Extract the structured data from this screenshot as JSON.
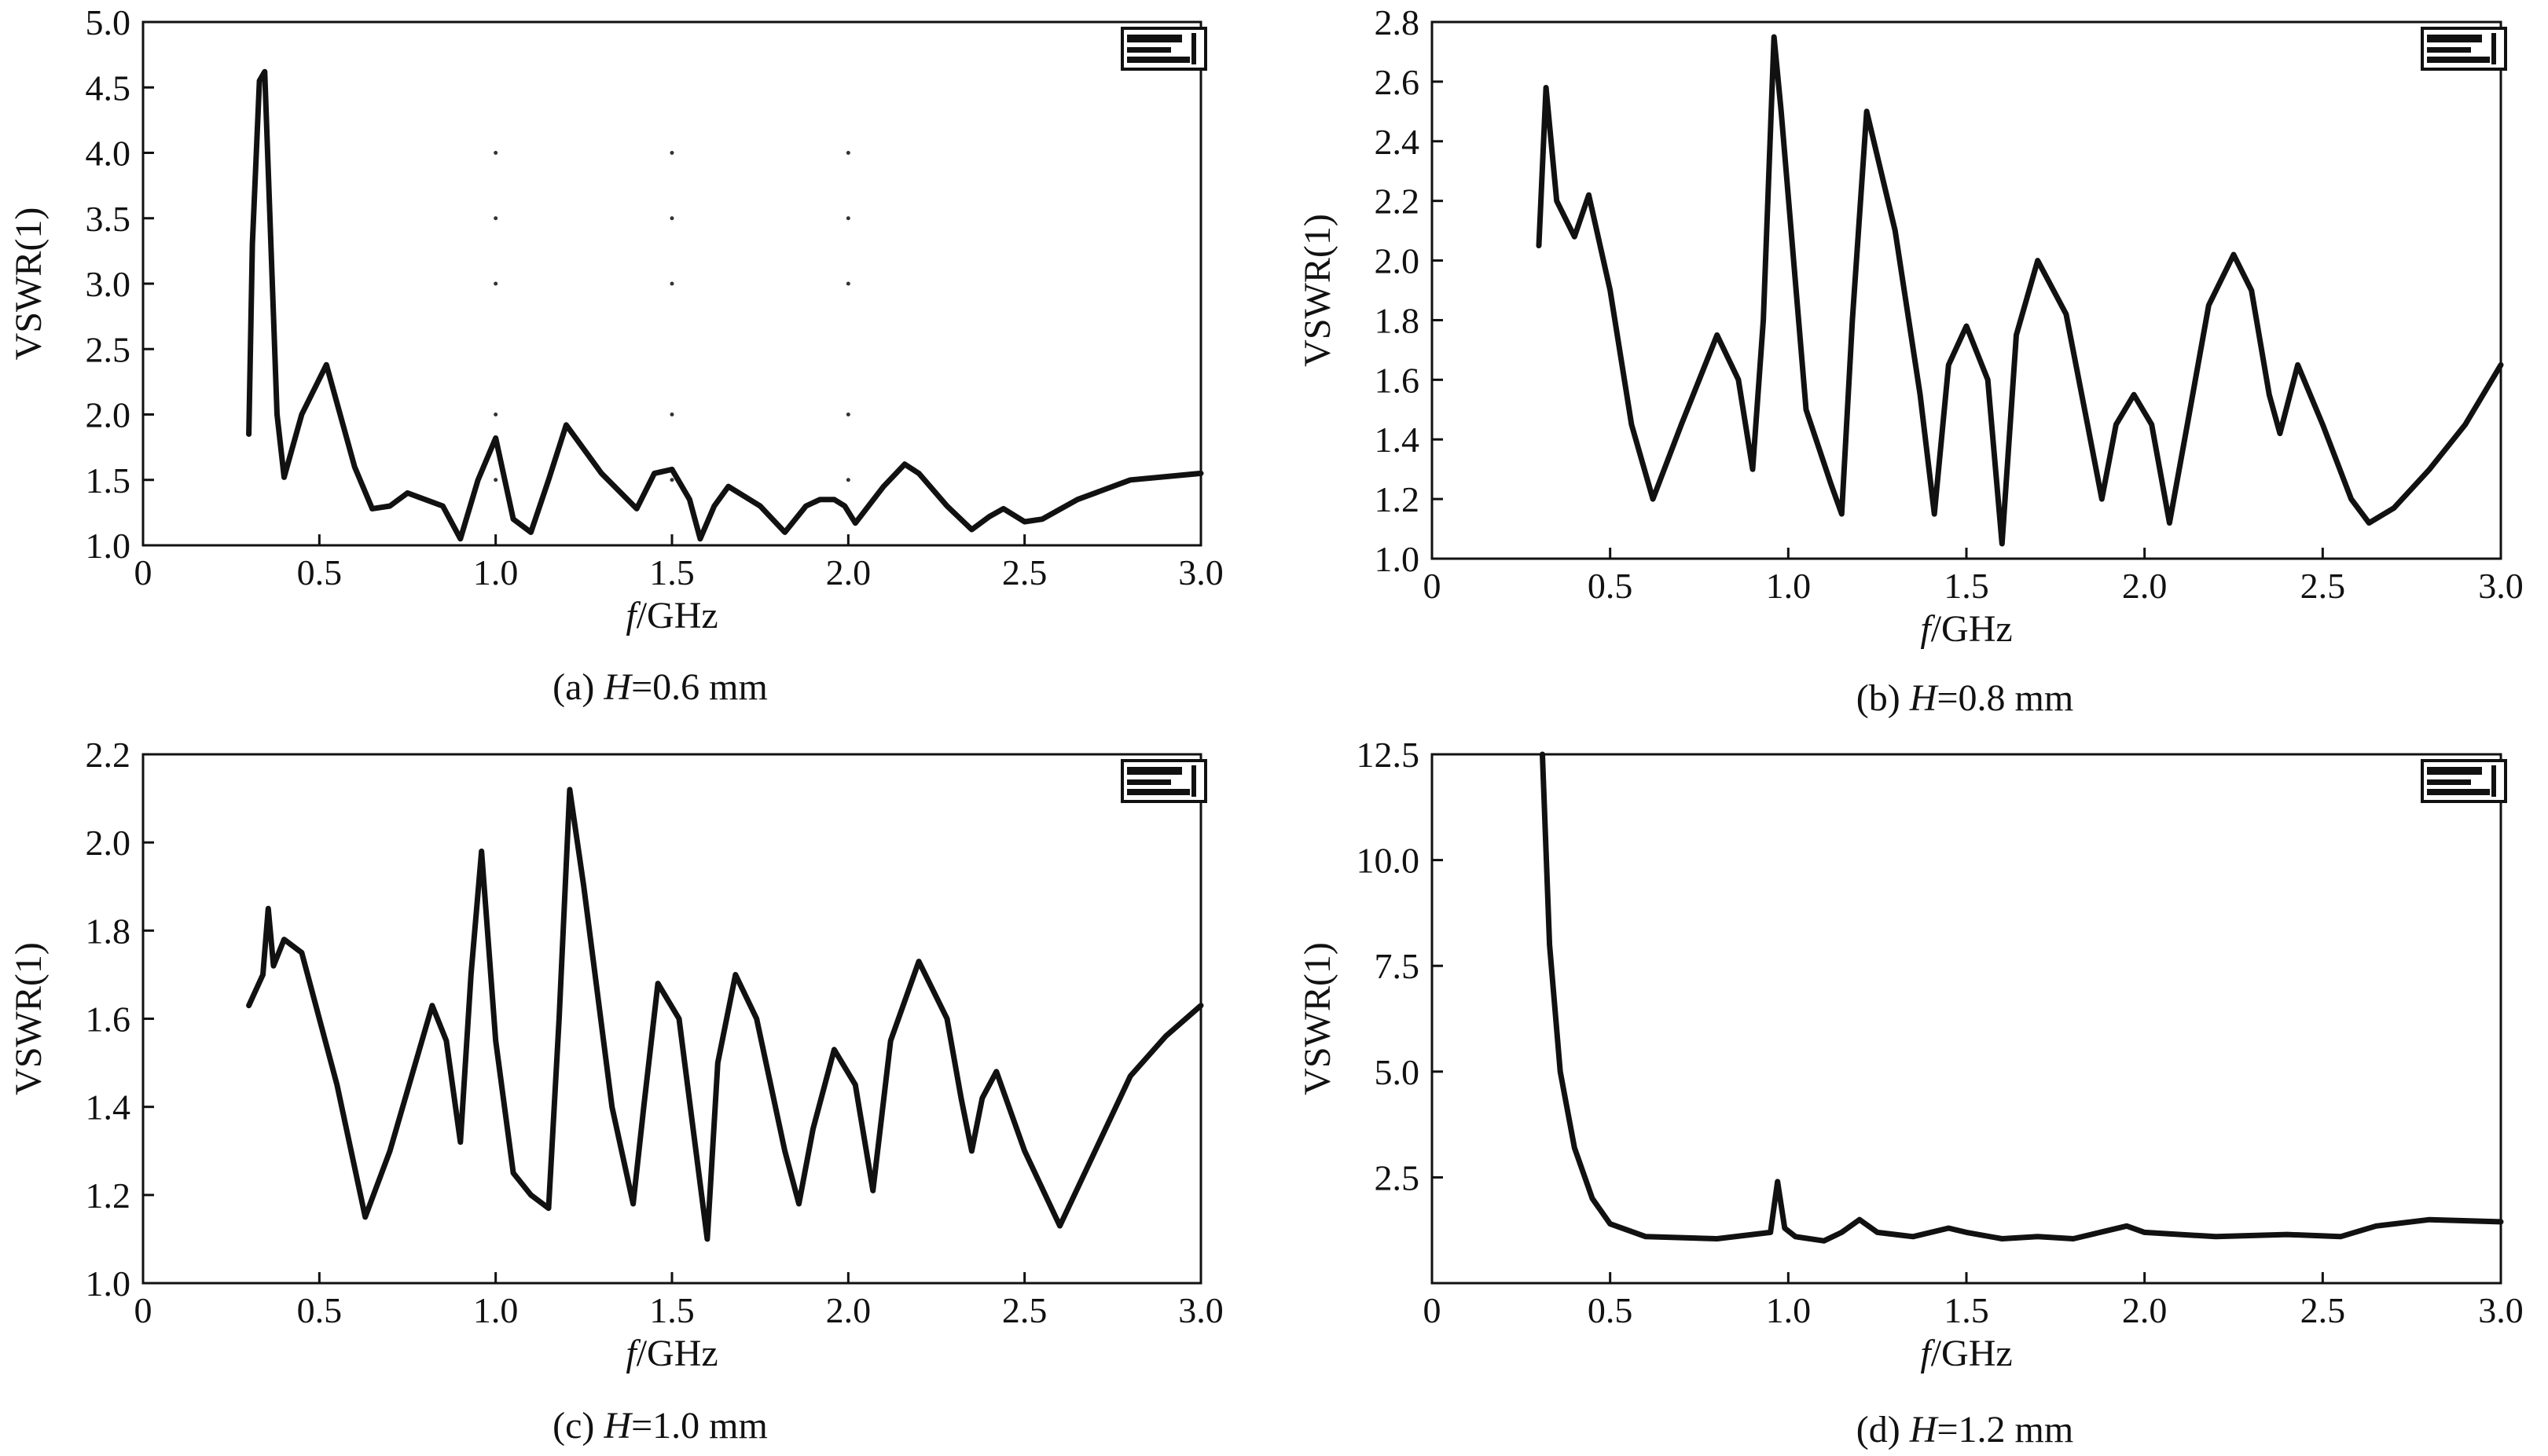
{
  "chart_data": [
    {
      "type": "line",
      "caption_prefix": "(a) ",
      "caption_var": "H",
      "caption_value": "=0.6 mm",
      "ylabel": "VSWR(1)",
      "xlabel_var": "f",
      "xlabel_unit": "/GHz",
      "xlim": [
        0,
        3.0
      ],
      "ylim": [
        1.0,
        5.0
      ],
      "xticks": [
        "0",
        "0.5",
        "1.0",
        "1.5",
        "2.0",
        "2.5",
        "3.0"
      ],
      "yticks": [
        "1.0",
        "1.5",
        "2.0",
        "2.5",
        "3.0",
        "3.5",
        "4.0",
        "4.5",
        "5.0"
      ],
      "legend": "top-right",
      "x": [
        0.3,
        0.31,
        0.33,
        0.345,
        0.36,
        0.38,
        0.4,
        0.45,
        0.52,
        0.6,
        0.65,
        0.7,
        0.75,
        0.85,
        0.9,
        0.95,
        1.0,
        1.05,
        1.1,
        1.15,
        1.2,
        1.3,
        1.4,
        1.45,
        1.5,
        1.55,
        1.58,
        1.62,
        1.66,
        1.75,
        1.82,
        1.88,
        1.92,
        1.96,
        1.99,
        2.02,
        2.1,
        2.16,
        2.2,
        2.28,
        2.35,
        2.4,
        2.44,
        2.5,
        2.55,
        2.65,
        2.8,
        3.0
      ],
      "y": [
        1.85,
        3.3,
        4.55,
        4.62,
        3.5,
        2.0,
        1.52,
        2.0,
        2.38,
        1.6,
        1.28,
        1.3,
        1.4,
        1.3,
        1.05,
        1.5,
        1.82,
        1.2,
        1.1,
        1.5,
        1.92,
        1.55,
        1.28,
        1.55,
        1.58,
        1.35,
        1.05,
        1.3,
        1.45,
        1.3,
        1.1,
        1.3,
        1.35,
        1.35,
        1.3,
        1.17,
        1.45,
        1.62,
        1.55,
        1.3,
        1.12,
        1.22,
        1.28,
        1.18,
        1.2,
        1.35,
        1.5,
        1.55
      ]
    },
    {
      "type": "line",
      "caption_prefix": "(b) ",
      "caption_var": "H",
      "caption_value": "=0.8 mm",
      "ylabel": "VSWR(1)",
      "xlabel_var": "f",
      "xlabel_unit": "/GHz",
      "xlim": [
        0,
        3.0
      ],
      "ylim": [
        1.0,
        2.8
      ],
      "xticks": [
        "0",
        "0.5",
        "1.0",
        "1.5",
        "2.0",
        "2.5",
        "3.0"
      ],
      "yticks": [
        "1.0",
        "1.2",
        "1.4",
        "1.6",
        "1.8",
        "2.0",
        "2.2",
        "2.4",
        "2.6",
        "2.8"
      ],
      "legend": "top-right",
      "x": [
        0.3,
        0.32,
        0.35,
        0.4,
        0.44,
        0.5,
        0.56,
        0.62,
        0.7,
        0.8,
        0.86,
        0.9,
        0.93,
        0.96,
        0.98,
        1.05,
        1.12,
        1.15,
        1.18,
        1.22,
        1.3,
        1.37,
        1.41,
        1.45,
        1.5,
        1.56,
        1.6,
        1.64,
        1.7,
        1.78,
        1.84,
        1.88,
        1.92,
        1.97,
        2.02,
        2.07,
        2.12,
        2.18,
        2.25,
        2.3,
        2.35,
        2.38,
        2.43,
        2.5,
        2.58,
        2.63,
        2.7,
        2.8,
        2.9,
        3.0
      ],
      "y": [
        2.05,
        2.58,
        2.2,
        2.08,
        2.22,
        1.9,
        1.45,
        1.2,
        1.45,
        1.75,
        1.6,
        1.3,
        1.8,
        2.75,
        2.5,
        1.5,
        1.25,
        1.15,
        1.8,
        2.5,
        2.1,
        1.55,
        1.15,
        1.65,
        1.78,
        1.6,
        1.05,
        1.75,
        2.0,
        1.82,
        1.45,
        1.2,
        1.45,
        1.55,
        1.45,
        1.12,
        1.45,
        1.85,
        2.02,
        1.9,
        1.55,
        1.42,
        1.65,
        1.45,
        1.2,
        1.12,
        1.17,
        1.3,
        1.45,
        1.65
      ]
    },
    {
      "type": "line",
      "caption_prefix": "(c) ",
      "caption_var": "H",
      "caption_value": "=1.0 mm",
      "ylabel": "VSWR(1)",
      "xlabel_var": "f",
      "xlabel_unit": "/GHz",
      "xlim": [
        0,
        3.0
      ],
      "ylim": [
        1.0,
        2.2
      ],
      "xticks": [
        "0",
        "0.5",
        "1.0",
        "1.5",
        "2.0",
        "2.5",
        "3.0"
      ],
      "yticks": [
        "1.0",
        "1.2",
        "1.4",
        "1.6",
        "1.8",
        "2.0",
        "2.2"
      ],
      "legend": "top-right",
      "x": [
        0.3,
        0.34,
        0.355,
        0.37,
        0.4,
        0.45,
        0.55,
        0.63,
        0.7,
        0.82,
        0.86,
        0.9,
        0.93,
        0.96,
        1.0,
        1.05,
        1.1,
        1.15,
        1.18,
        1.21,
        1.25,
        1.33,
        1.39,
        1.42,
        1.46,
        1.52,
        1.56,
        1.6,
        1.63,
        1.68,
        1.74,
        1.82,
        1.86,
        1.9,
        1.96,
        2.02,
        2.07,
        2.12,
        2.2,
        2.28,
        2.32,
        2.35,
        2.38,
        2.42,
        2.5,
        2.6,
        2.7,
        2.8,
        2.9,
        3.0
      ],
      "y": [
        1.63,
        1.7,
        1.85,
        1.72,
        1.78,
        1.75,
        1.45,
        1.15,
        1.3,
        1.63,
        1.55,
        1.32,
        1.7,
        1.98,
        1.55,
        1.25,
        1.2,
        1.17,
        1.6,
        2.12,
        1.9,
        1.4,
        1.18,
        1.4,
        1.68,
        1.6,
        1.35,
        1.1,
        1.5,
        1.7,
        1.6,
        1.3,
        1.18,
        1.35,
        1.53,
        1.45,
        1.21,
        1.55,
        1.73,
        1.6,
        1.42,
        1.3,
        1.42,
        1.48,
        1.3,
        1.13,
        1.3,
        1.47,
        1.56,
        1.63
      ]
    },
    {
      "type": "line",
      "caption_prefix": "(d) ",
      "caption_var": "H",
      "caption_value": "=1.2 mm",
      "ylabel": "VSWR(1)",
      "xlabel_var": "f",
      "xlabel_unit": "/GHz",
      "xlim": [
        0,
        3.0
      ],
      "ylim": [
        0,
        12.5
      ],
      "xticks": [
        "0",
        "0.5",
        "1.0",
        "1.5",
        "2.0",
        "2.5",
        "3.0"
      ],
      "ytick_values": [
        2.5,
        5.0,
        7.5,
        10.0,
        12.5
      ],
      "yticks": [
        "2.5",
        "5.0",
        "7.5",
        "10.0",
        "12.5"
      ],
      "legend": "top-right",
      "x": [
        0.31,
        0.33,
        0.36,
        0.4,
        0.45,
        0.5,
        0.6,
        0.8,
        0.95,
        0.97,
        0.99,
        1.02,
        1.1,
        1.15,
        1.2,
        1.25,
        1.35,
        1.45,
        1.5,
        1.6,
        1.7,
        1.8,
        1.9,
        1.95,
        2.0,
        2.2,
        2.4,
        2.55,
        2.65,
        2.8,
        3.0
      ],
      "y": [
        12.5,
        8.0,
        5.0,
        3.2,
        2.0,
        1.4,
        1.1,
        1.05,
        1.2,
        2.4,
        1.3,
        1.1,
        1.0,
        1.2,
        1.5,
        1.2,
        1.1,
        1.3,
        1.2,
        1.05,
        1.1,
        1.05,
        1.25,
        1.35,
        1.2,
        1.1,
        1.15,
        1.1,
        1.35,
        1.5,
        1.45
      ]
    }
  ]
}
